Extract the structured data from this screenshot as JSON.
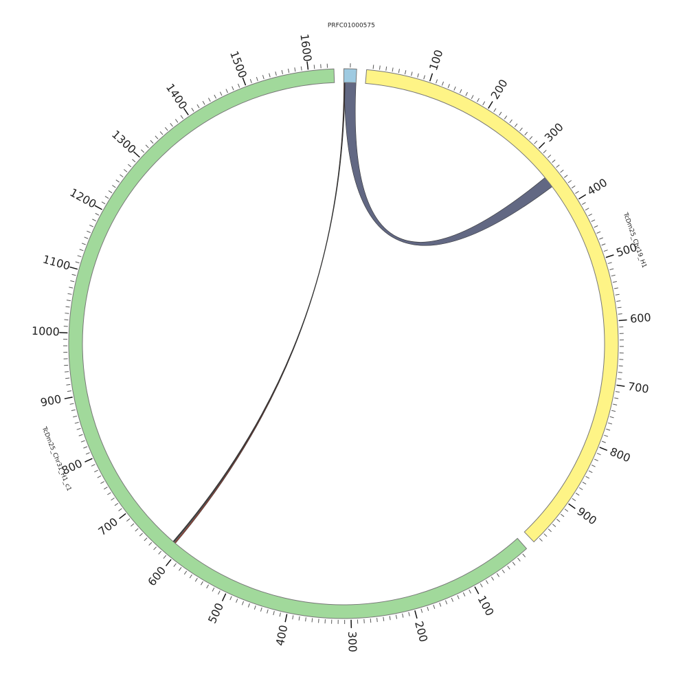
{
  "chart_data": {
    "type": "chord",
    "minor_tick_step": 10,
    "segments": [
      {
        "name": "PRFC01000575",
        "length": 20,
        "color": "#9ecae1",
        "ticks": []
      },
      {
        "name": "TcDm25_Chr19_H1",
        "length": 980,
        "color": "#fef486",
        "ticks": [
          100,
          200,
          300,
          400,
          500,
          600,
          700,
          800,
          900
        ]
      },
      {
        "name": "TcDm25_Chr31_H1_c1",
        "length": 1640,
        "color": "#a1d99b",
        "ticks": [
          100,
          200,
          300,
          400,
          500,
          600,
          700,
          800,
          900,
          1000,
          1100,
          1200,
          1300,
          1400,
          1500,
          1600
        ]
      }
    ],
    "links": [
      {
        "source": 0,
        "source_range": [
          1,
          20
        ],
        "target": 1,
        "target_range": [
          341,
          360
        ],
        "color": "#5a607c"
      },
      {
        "source": 0,
        "source_range": [
          0,
          1
        ],
        "target": 2,
        "target_range": [
          611,
          613
        ],
        "color": "#a33a2a"
      },
      {
        "source": 0,
        "source_range": [
          1,
          2
        ],
        "target": 2,
        "target_range": [
          614,
          616
        ],
        "color": "#333333"
      }
    ]
  }
}
